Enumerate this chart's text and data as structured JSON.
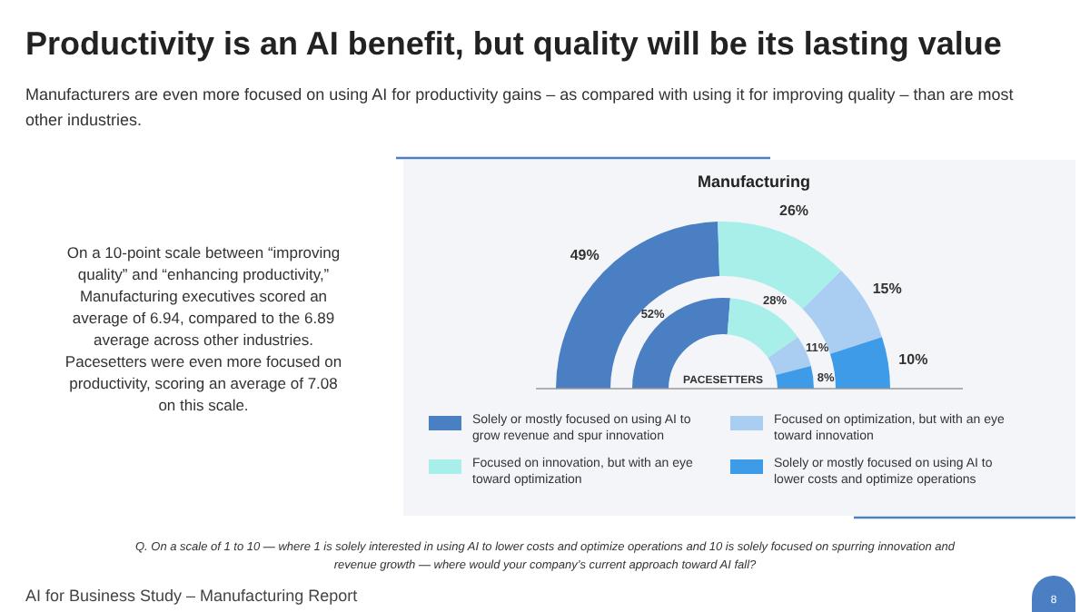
{
  "chart_data": [
    {
      "type": "other",
      "title": "Productivity is an AI benefit, but quality will be its lasting value",
      "subtitle": "Manufacturers are even more focused on using AI for productivity gains – as compared with using it for improving quality – than are most other industries.",
      "annotations": [
        "On a 10-point scale between “improving quality” and “enhancing productivity,” Manufacturing executives scored an average of 6.94, compared to the 6.89 average across other industries. Pacesetters were even more focused on productivity, scoring an average of 7.08 on this scale.",
        "Q. On a scale of 1 to 10 — where 1 is solely interested in using AI to lower costs and optimize operations and 10 is solely focused on spurring innovation and revenue growth —  where would your company’s current approach toward AI fall?",
        "AI for Business Study – Manufacturing Report",
        "8"
      ]
    },
    {
      "type": "donut",
      "title": "Manufacturing",
      "categories": [
        "Solely or mostly focused on using AI to grow revenue and spur innovation",
        "Focused on innovation, but with an eye toward optimization",
        "Focused on optimization, but with an eye toward innovation",
        "Solely or mostly focused on using AI to lower costs and optimize operations"
      ],
      "colors": [
        "#4a7fc4",
        "#a8efea",
        "#a9cef2",
        "#3e9be8"
      ],
      "series": [
        {
          "values": [
            49,
            26,
            15,
            10
          ],
          "value_labels": [
            "49%",
            "26%",
            "15%",
            "10%"
          ]
        },
        {
          "name": "PACESETTERS",
          "values": [
            52,
            28,
            11,
            8
          ],
          "value_labels": [
            "52%",
            "28%",
            "11%",
            "8%"
          ]
        }
      ],
      "legend": "bottom"
    }
  ]
}
